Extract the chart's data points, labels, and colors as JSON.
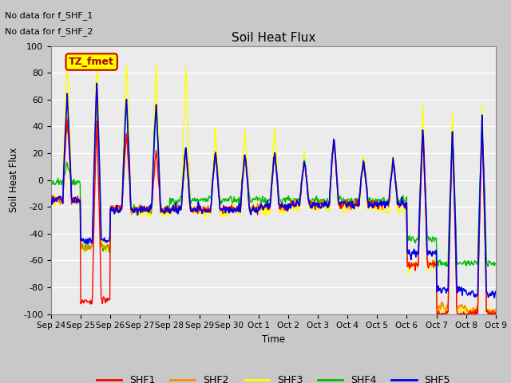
{
  "title": "Soil Heat Flux",
  "ylabel": "Soil Heat Flux",
  "xlabel": "Time",
  "ylim": [
    -100,
    100
  ],
  "plot_bg_color": "#ebebeb",
  "fig_bg_color": "#c8c8c8",
  "annotations": [
    "No data for f_SHF_1",
    "No data for f_SHF_2"
  ],
  "legend_label": "TZ_fmet",
  "legend_bg": "#ffff00",
  "legend_border": "#cc0000",
  "series_colors": {
    "SHF1": "#ff0000",
    "SHF2": "#ff8800",
    "SHF3": "#ffff00",
    "SHF4": "#00bb00",
    "SHF5": "#0000ee"
  },
  "xtick_labels": [
    "Sep 24",
    "Sep 25",
    "Sep 26",
    "Sep 27",
    "Sep 28",
    "Sep 29",
    "Sep 30",
    "Oct 1",
    "Oct 2",
    "Oct 3",
    "Oct 4",
    "Oct 5",
    "Oct 6",
    "Oct 7",
    "Oct 8",
    "Oct 9"
  ],
  "ytick_labels": [
    -100,
    -80,
    -60,
    -40,
    -20,
    0,
    20,
    40,
    60,
    80,
    100
  ]
}
